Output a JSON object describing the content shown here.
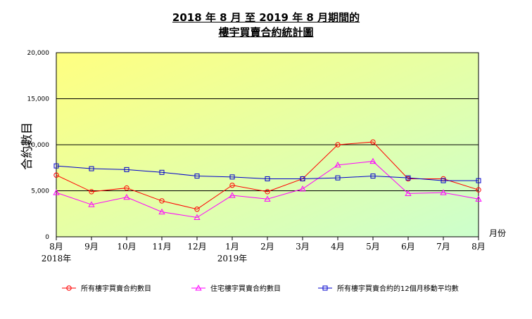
{
  "title_line1": "2018 年 8 月 至 2019 年 8 月期間的",
  "title_line2": "樓宇買賣合約統計圖",
  "colors": {
    "series_all": "#ff0000",
    "series_residential": "#ff00ff",
    "series_moving_avg": "#0000cc",
    "bg_top": "#ffff80",
    "bg_bottom": "#ccffcc"
  },
  "chart_data": {
    "type": "line",
    "title": "2018 年 8 月 至 2019 年 8 月期間的 樓宇買賣合約統計圖",
    "ylabel": "合約數目",
    "xlabel": "月份",
    "ylim": [
      0,
      20000
    ],
    "yticks": [
      0,
      5000,
      10000,
      15000,
      20000
    ],
    "ytick_labels": [
      "0",
      "5,000",
      "10,000",
      "15,000",
      "20,000"
    ],
    "categories": [
      "8月",
      "9月",
      "10月",
      "11月",
      "12月",
      "1月",
      "2月",
      "3月",
      "4月",
      "5月",
      "6月",
      "7月",
      "8月"
    ],
    "year_labels": [
      {
        "index": 0,
        "label": "2018年"
      },
      {
        "index": 5,
        "label": "2019年"
      }
    ],
    "grid": true,
    "legend_position": "bottom",
    "series": [
      {
        "name": "所有樓宇買賣合約數目",
        "marker": "circle",
        "color": "#ff0000",
        "values": [
          6700,
          4900,
          5300,
          3900,
          3000,
          5600,
          4900,
          6300,
          10000,
          10300,
          6300,
          6300,
          5100
        ]
      },
      {
        "name": "住宅樓宇買賣合約數目",
        "marker": "triangle",
        "color": "#ff00ff",
        "values": [
          4800,
          3500,
          4300,
          2700,
          2100,
          4500,
          4100,
          5200,
          7800,
          8200,
          4700,
          4800,
          4100
        ]
      },
      {
        "name": "所有樓宇買賣合約的12個月移動平均數",
        "marker": "square",
        "color": "#0000cc",
        "values": [
          7700,
          7400,
          7300,
          7000,
          6600,
          6500,
          6300,
          6300,
          6400,
          6600,
          6400,
          6100,
          6100
        ]
      }
    ]
  }
}
